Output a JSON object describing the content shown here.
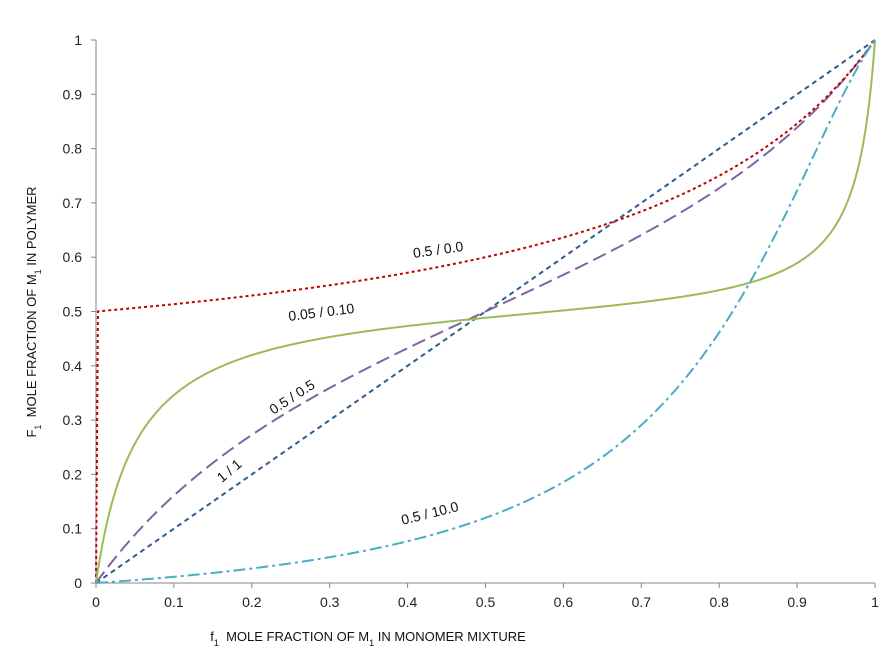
{
  "chart_data": {
    "type": "line",
    "xlabel": {
      "prefix": "f",
      "prefix_sub": "1",
      "text1": "  MOLE FRACTION OF M",
      "sub": "1",
      "text2": " IN MONOMER MIXTURE"
    },
    "ylabel": {
      "prefix": "F",
      "prefix_sub": "1",
      "text1": "  MOLE FRACTION OF M",
      "sub": "1",
      "text2": " IN POLYMER"
    },
    "xlim": [
      0,
      1
    ],
    "ylim": [
      0,
      1
    ],
    "xticks": [
      "0",
      "0.1",
      "0.2",
      "0.3",
      "0.4",
      "0.5",
      "0.6",
      "0.7",
      "0.8",
      "0.9",
      "1"
    ],
    "yticks": [
      "0",
      "0.1",
      "0.2",
      "0.3",
      "0.4",
      "0.5",
      "0.6",
      "0.7",
      "0.8",
      "0.9",
      "1"
    ],
    "grid": false,
    "series": [
      {
        "name": "1 / 1",
        "r1": 1,
        "r2": 1,
        "color": "#2e5c8f",
        "dash": "5,4",
        "x": [
          0,
          0.1,
          0.2,
          0.3,
          0.4,
          0.5,
          0.6,
          0.7,
          0.8,
          0.9,
          1
        ],
        "y": [
          0,
          0.1,
          0.2,
          0.3,
          0.4,
          0.5,
          0.6,
          0.7,
          0.8,
          0.9,
          1
        ]
      },
      {
        "name": "0.5 / 0.5",
        "r1": 0.5,
        "r2": 0.5,
        "color": "#8064a2",
        "dash": "14,6",
        "x": [
          0,
          0.05,
          0.1,
          0.2,
          0.3,
          0.4,
          0.5,
          0.6,
          0.7,
          0.8,
          0.9,
          0.95,
          1
        ],
        "y": [
          0,
          0.091,
          0.164,
          0.273,
          0.363,
          0.432,
          0.5,
          0.568,
          0.637,
          0.727,
          0.836,
          0.909,
          1
        ]
      },
      {
        "name": "0.5 / 0.0",
        "r1": 0.5,
        "r2": 0.0,
        "color": "#c00000",
        "dash": "3,3",
        "x": [
          0,
          0.1,
          0.2,
          0.3,
          0.4,
          0.5,
          0.6,
          0.7,
          0.8,
          0.9,
          1
        ],
        "y": [
          0.5,
          0.514,
          0.529,
          0.548,
          0.571,
          0.6,
          0.636,
          0.685,
          0.75,
          0.845,
          1
        ]
      },
      {
        "name": "0.05 / 0.10",
        "r1": 0.05,
        "r2": 0.1,
        "color": "#9bbb59",
        "dash": "",
        "x": [
          0,
          0.01,
          0.02,
          0.05,
          0.1,
          0.2,
          0.3,
          0.4,
          0.5,
          0.6,
          0.7,
          0.8,
          0.9,
          0.95,
          0.98,
          1
        ],
        "y": [
          0,
          0.09,
          0.16,
          0.29,
          0.37,
          0.43,
          0.46,
          0.48,
          0.49,
          0.5,
          0.515,
          0.54,
          0.6,
          0.67,
          0.79,
          1
        ]
      },
      {
        "name": "0.5 / 10.0",
        "r1": 0.5,
        "r2": 10.0,
        "color": "#4bacc6",
        "dash": "12,4,3,4",
        "x": [
          0,
          0.1,
          0.2,
          0.3,
          0.4,
          0.5,
          0.6,
          0.7,
          0.8,
          0.9,
          0.95,
          1
        ],
        "y": [
          0,
          0.011,
          0.024,
          0.044,
          0.072,
          0.114,
          0.18,
          0.29,
          0.47,
          0.74,
          0.88,
          1
        ]
      }
    ],
    "annotations": [
      {
        "text": "0.5 / 0.0",
        "x": 0.44,
        "y": 0.605,
        "rotate": -8
      },
      {
        "text": "0.05 / 0.10",
        "x": 0.29,
        "y": 0.49,
        "rotate": -7
      },
      {
        "text": "0.5 / 0.5",
        "x": 0.255,
        "y": 0.335,
        "rotate": -33
      },
      {
        "text": "1 / 1",
        "x": 0.175,
        "y": 0.2,
        "rotate": -40
      },
      {
        "text": "0.5 / 10.0",
        "x": 0.43,
        "y": 0.12,
        "rotate": -14
      }
    ]
  }
}
